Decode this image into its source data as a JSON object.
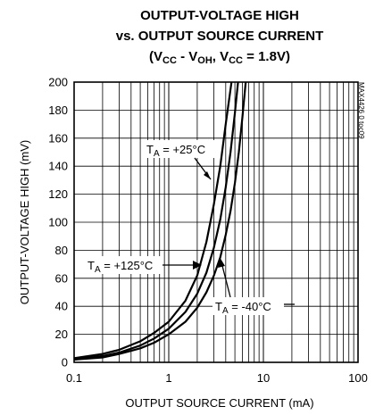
{
  "chart_data": {
    "type": "line",
    "title_lines": [
      "OUTPUT-VOLTAGE HIGH",
      "vs. OUTPUT SOURCE CURRENT"
    ],
    "subtitle": {
      "open": "(V",
      "sub1": "CC",
      "mid": " - V",
      "sub2": "OH",
      "mid2": ", V",
      "sub3": "CC",
      "close": " = 1.8V)"
    },
    "xlabel": "OUTPUT SOURCE CURRENT (mA)",
    "ylabel": "OUTPUT-VOLTAGE HIGH (mV)",
    "figure_code": "MAX4426 0 toc09",
    "x_scale": "log",
    "xlim": [
      0.1,
      100
    ],
    "ylim": [
      0,
      200
    ],
    "x_ticks": [
      0.1,
      1,
      10,
      100
    ],
    "x_tick_labels": [
      "0.1",
      "1",
      "10",
      "100"
    ],
    "y_ticks": [
      0,
      20,
      40,
      60,
      80,
      100,
      120,
      140,
      160,
      180,
      200
    ],
    "y_tick_labels": [
      "0",
      "20",
      "40",
      "60",
      "80",
      "100",
      "120",
      "140",
      "160",
      "180",
      "200"
    ],
    "grid": true,
    "series": [
      {
        "name": "TA = +125°C",
        "label_main": "T",
        "label_sub": "A",
        "label_rest": " = +125°C",
        "x": [
          0.1,
          0.2,
          0.3,
          0.5,
          0.7,
          1.0,
          1.5,
          2.0,
          2.5,
          3.0,
          3.5,
          4.0,
          4.6
        ],
        "y": [
          3,
          6,
          9,
          15,
          21,
          29,
          44,
          62,
          86,
          113,
          140,
          170,
          200
        ]
      },
      {
        "name": "TA = +25°C",
        "label_main": "T",
        "label_sub": "A",
        "label_rest": " = +25°C",
        "x": [
          0.1,
          0.2,
          0.3,
          0.5,
          0.7,
          1.0,
          1.5,
          2.0,
          2.5,
          3.0,
          3.5,
          4.0,
          4.5,
          5.0,
          5.4
        ],
        "y": [
          2,
          4.5,
          7,
          12,
          17,
          24,
          36,
          49,
          64,
          82,
          102,
          125,
          150,
          178,
          200
        ]
      },
      {
        "name": "TA = -40°C",
        "label_main": "T",
        "label_sub": "A",
        "label_rest": " = -40°C",
        "x": [
          0.1,
          0.2,
          0.3,
          0.5,
          0.7,
          1.0,
          1.5,
          2.0,
          2.5,
          3.0,
          3.5,
          4.0,
          4.5,
          5.0,
          5.5,
          6.0,
          6.5
        ],
        "y": [
          2,
          3.5,
          6,
          10,
          14,
          20,
          29,
          39,
          50,
          62,
          75,
          91,
          108,
          128,
          150,
          175,
          200
        ]
      }
    ]
  }
}
